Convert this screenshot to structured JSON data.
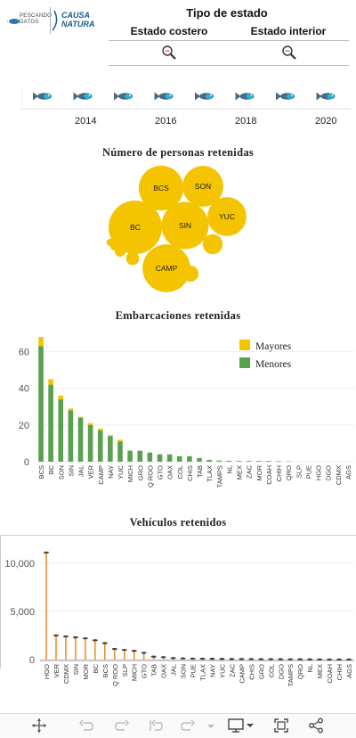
{
  "header": {
    "logo1_text": "PESCANDO DATOS",
    "logo2_text": "CAUSA NATURA",
    "filter_title": "Tipo de estado",
    "col1": "Estado costero",
    "col2": "Estado interior"
  },
  "timeline": {
    "years": [
      "2014",
      "2016",
      "2018",
      "2020"
    ]
  },
  "chart_data": [
    {
      "type": "bubble",
      "title": "Número de personas retenidas",
      "bubbles": [
        {
          "label": "BC",
          "value": 100
        },
        {
          "label": "SIN",
          "value": 78
        },
        {
          "label": "CAMP",
          "value": 80
        },
        {
          "label": "BCS",
          "value": 70
        },
        {
          "label": "SON",
          "value": 58
        },
        {
          "label": "YUC",
          "value": 53
        },
        {
          "label": "",
          "value": 14
        },
        {
          "label": "",
          "value": 9
        },
        {
          "label": "",
          "value": 6
        },
        {
          "label": "",
          "value": 4
        },
        {
          "label": "",
          "value": 3
        },
        {
          "label": "",
          "value": 2
        }
      ],
      "color": "#f5c400"
    },
    {
      "type": "bar",
      "title": "Embarcaciones retenidas",
      "categories": [
        "BCS",
        "BC",
        "SON",
        "SIN",
        "JAL",
        "VER",
        "CAMP",
        "NAY",
        "YUC",
        "MICH",
        "GRO",
        "Q ROO",
        "GTO",
        "OAX",
        "COL",
        "CHIS",
        "TAB",
        "TLAX",
        "TAMPS",
        "NL",
        "MEX",
        "ZAC",
        "MOR",
        "COAH",
        "CHIH",
        "QRO",
        "SLP",
        "PUE",
        "HGO",
        "DGO",
        "CDMX",
        "AGS"
      ],
      "series": [
        {
          "name": "Menores",
          "values": [
            63,
            42,
            34,
            28,
            24,
            20,
            17,
            14,
            11,
            6,
            6,
            5,
            4,
            4,
            3,
            3,
            2,
            1,
            0.6,
            0.5,
            0.4,
            0.4,
            0.4,
            0.4,
            0.3,
            0.2,
            0,
            0,
            0,
            0,
            0,
            0
          ],
          "color": "#59a14f"
        },
        {
          "name": "Mayores",
          "values": [
            5,
            3,
            2,
            1,
            0.5,
            1,
            1,
            0.5,
            1,
            0,
            0,
            0,
            0,
            0,
            0,
            0,
            0,
            0,
            0,
            0,
            0,
            0,
            0,
            0,
            0,
            0,
            0,
            0,
            0,
            0,
            0,
            0
          ],
          "color": "#f5c400"
        }
      ],
      "yticks": [
        0,
        20,
        40,
        60
      ],
      "ylim": [
        0,
        70
      ],
      "legend_position": "top-right",
      "grid": true
    },
    {
      "type": "lollipop",
      "title": "Vehículos retenidos",
      "categories": [
        "HGO",
        "VER",
        "CDMX",
        "SIN",
        "MOR",
        "BC",
        "BCS",
        "Q ROO",
        "SLP",
        "MICH",
        "GTO",
        "TAB",
        "OAX",
        "JAL",
        "SON",
        "PUE",
        "TLAX",
        "NAY",
        "YUC",
        "ZAC",
        "CAMP",
        "CHIS",
        "GRO",
        "COL",
        "DGO",
        "TAMPS",
        "QRO",
        "NL",
        "MEX",
        "COAH",
        "CHIH",
        "AGS"
      ],
      "values": [
        11100,
        2500,
        2400,
        2300,
        2200,
        2000,
        1700,
        1100,
        1000,
        900,
        700,
        300,
        250,
        150,
        120,
        100,
        90,
        80,
        70,
        60,
        55,
        50,
        45,
        40,
        35,
        30,
        25,
        20,
        15,
        10,
        8,
        5
      ],
      "yticks": [
        "0",
        "5,000",
        "10,000"
      ],
      "ytick_values": [
        0,
        5000,
        10000
      ],
      "ylim": [
        0,
        12200
      ],
      "color": "#f28e2b",
      "grid": true
    }
  ]
}
